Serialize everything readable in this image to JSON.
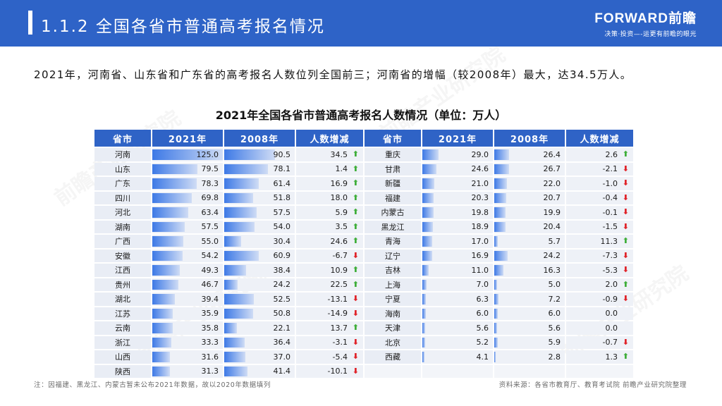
{
  "header": {
    "title": "1.1.2 全国各省市普通高考报名情况",
    "brand_logo": "FORWARD前瞻",
    "brand_slogan": "决策·投资—-运更有前瞻的眼光"
  },
  "summary": "2021年，河南省、山东省和广东省的高考报名人数位列全国前三；河南省的增幅（较2008年）最大，达34.5万人。",
  "table_title": "2021年全国各省市普通高考报名人数情况（单位：万人）",
  "table": {
    "headers": [
      "省市",
      "2021年",
      "2008年",
      "人数增减",
      "省市",
      "2021年",
      "2008年",
      "人数增减"
    ],
    "left": [
      {
        "province": "河南",
        "y2021": "125.0",
        "y2008": "90.5",
        "change": "34.5",
        "dir": "up"
      },
      {
        "province": "山东",
        "y2021": "79.5",
        "y2008": "78.1",
        "change": "1.4",
        "dir": "up"
      },
      {
        "province": "广东",
        "y2021": "78.3",
        "y2008": "61.4",
        "change": "16.9",
        "dir": "up"
      },
      {
        "province": "四川",
        "y2021": "69.8",
        "y2008": "51.8",
        "change": "18.0",
        "dir": "up"
      },
      {
        "province": "河北",
        "y2021": "63.4",
        "y2008": "57.5",
        "change": "5.9",
        "dir": "up"
      },
      {
        "province": "湖南",
        "y2021": "57.5",
        "y2008": "54.0",
        "change": "3.5",
        "dir": "up"
      },
      {
        "province": "广西",
        "y2021": "55.0",
        "y2008": "30.4",
        "change": "24.6",
        "dir": "up"
      },
      {
        "province": "安徽",
        "y2021": "54.2",
        "y2008": "60.9",
        "change": "-6.7",
        "dir": "down"
      },
      {
        "province": "江西",
        "y2021": "49.3",
        "y2008": "38.4",
        "change": "10.9",
        "dir": "up"
      },
      {
        "province": "贵州",
        "y2021": "46.7",
        "y2008": "24.2",
        "change": "22.5",
        "dir": "up"
      },
      {
        "province": "湖北",
        "y2021": "39.4",
        "y2008": "52.5",
        "change": "-13.1",
        "dir": "down"
      },
      {
        "province": "江苏",
        "y2021": "35.9",
        "y2008": "50.8",
        "change": "-14.9",
        "dir": "down"
      },
      {
        "province": "云南",
        "y2021": "35.8",
        "y2008": "22.1",
        "change": "13.7",
        "dir": "up"
      },
      {
        "province": "浙江",
        "y2021": "33.3",
        "y2008": "36.4",
        "change": "-3.1",
        "dir": "down"
      },
      {
        "province": "山西",
        "y2021": "31.6",
        "y2008": "37.0",
        "change": "-5.4",
        "dir": "down"
      },
      {
        "province": "陕西",
        "y2021": "31.3",
        "y2008": "41.4",
        "change": "-10.1",
        "dir": "down"
      }
    ],
    "right": [
      {
        "province": "重庆",
        "y2021": "29.0",
        "y2008": "26.4",
        "change": "2.6",
        "dir": "up"
      },
      {
        "province": "甘肃",
        "y2021": "24.6",
        "y2008": "26.7",
        "change": "-2.1",
        "dir": "down"
      },
      {
        "province": "新疆",
        "y2021": "21.0",
        "y2008": "22.0",
        "change": "-1.0",
        "dir": "down"
      },
      {
        "province": "福建",
        "y2021": "20.3",
        "y2008": "20.7",
        "change": "-0.4",
        "dir": "down"
      },
      {
        "province": "内蒙古",
        "y2021": "19.8",
        "y2008": "19.9",
        "change": "-0.1",
        "dir": "down"
      },
      {
        "province": "黑龙江",
        "y2021": "18.9",
        "y2008": "20.4",
        "change": "-1.5",
        "dir": "down"
      },
      {
        "province": "青海",
        "y2021": "17.0",
        "y2008": "5.7",
        "change": "11.3",
        "dir": "up"
      },
      {
        "province": "辽宁",
        "y2021": "16.9",
        "y2008": "24.2",
        "change": "-7.3",
        "dir": "down"
      },
      {
        "province": "吉林",
        "y2021": "11.0",
        "y2008": "16.3",
        "change": "-5.3",
        "dir": "down"
      },
      {
        "province": "上海",
        "y2021": "7.0",
        "y2008": "5.0",
        "change": "2.0",
        "dir": "up"
      },
      {
        "province": "宁夏",
        "y2021": "6.3",
        "y2008": "7.2",
        "change": "-0.9",
        "dir": "down"
      },
      {
        "province": "海南",
        "y2021": "6.0",
        "y2008": "6.0",
        "change": "0.0",
        "dir": "none"
      },
      {
        "province": "天津",
        "y2021": "5.6",
        "y2008": "5.6",
        "change": "0.0",
        "dir": "none"
      },
      {
        "province": "北京",
        "y2021": "5.2",
        "y2008": "5.9",
        "change": "-0.7",
        "dir": "down"
      },
      {
        "province": "西藏",
        "y2021": "4.1",
        "y2008": "2.8",
        "change": "1.3",
        "dir": "up"
      }
    ]
  },
  "footnote": "注：因福建、黑龙江、内蒙古暂未公布2021年数据，故以2020年数据填列",
  "source": "资料来源：各省市教育厅、教育考试院 前瞻产业研究院整理",
  "watermark": "前瞻产业研究院",
  "colors": {
    "header_bg": "#2e63c7",
    "up_arrow": "#3fae3a",
    "down_arrow": "#e0242a",
    "bar": "#3d79e6"
  }
}
